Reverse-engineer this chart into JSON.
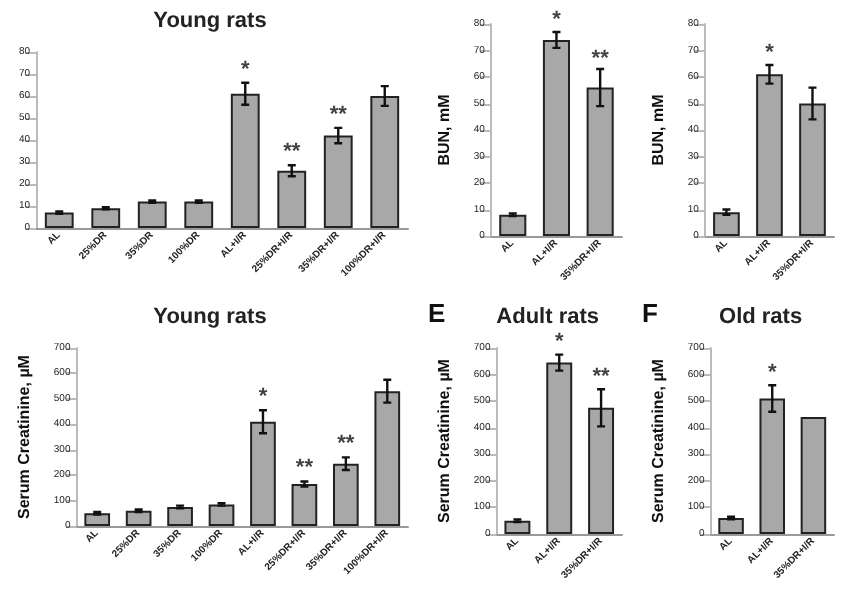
{
  "chart_data": [
    {
      "type": "bar",
      "title": "Young rats",
      "categories": [
        "AL",
        "25%DR",
        "35%DR",
        "100%DR",
        "AL+I/R",
        "25%DR+I/R",
        "35%DR+I/R",
        "100%DR+I/R"
      ],
      "series": [
        {
          "color": "#a8a8a8",
          "values": [
            7,
            9,
            12,
            12,
            61,
            26,
            42,
            60
          ],
          "errors": [
            0.5,
            0.5,
            0.5,
            0.5,
            5,
            2.5,
            3.5,
            4.5
          ]
        }
      ],
      "ylim": [
        0,
        80
      ],
      "yticks": [
        0,
        10,
        20,
        30,
        40,
        50,
        60,
        70,
        80
      ],
      "annotations": [
        {
          "text": "*",
          "x": "AL+I/R",
          "y": 61
        },
        {
          "text": "**",
          "x": "25%DR+I/R",
          "y": 26
        },
        {
          "text": "**",
          "x": "35%DR+I/R",
          "y": 42
        }
      ],
      "grid": false
    },
    {
      "type": "bar",
      "ylabel": "BUN, mM",
      "categories": [
        "AL",
        "AL+I/R",
        "35%DR+I/R"
      ],
      "series": [
        {
          "color": "#a8a8a8",
          "values": [
            8,
            74,
            56
          ],
          "errors": [
            0.5,
            3,
            7
          ]
        }
      ],
      "ylim": [
        0,
        80
      ],
      "yticks": [
        0,
        10,
        20,
        30,
        40,
        50,
        60,
        70,
        80
      ],
      "annotations": [
        {
          "text": "*",
          "x": "AL+I/R",
          "y": 74
        },
        {
          "text": "**",
          "x": "35%DR+I/R",
          "y": 56
        }
      ],
      "grid": false
    },
    {
      "type": "bar",
      "ylabel": "BUN, mM",
      "categories": [
        "AL",
        "AL+I/R",
        "35%DR+I/R"
      ],
      "series": [
        {
          "color": "#a8a8a8",
          "values": [
            9,
            61,
            50
          ],
          "errors": [
            1,
            3.5,
            6
          ]
        }
      ],
      "ylim": [
        0,
        80
      ],
      "yticks": [
        0,
        10,
        20,
        30,
        40,
        50,
        60,
        70,
        80
      ],
      "annotations": [
        {
          "text": "*",
          "x": "AL+I/R",
          "y": 61
        }
      ],
      "grid": false
    },
    {
      "type": "bar",
      "title": "Young rats",
      "ylabel": "Serum Creatinine, µM",
      "categories": [
        "AL",
        "25%DR",
        "35%DR",
        "100%DR",
        "AL+I/R",
        "25%DR+I/R",
        "35%DR+I/R",
        "100%DR+I/R"
      ],
      "series": [
        {
          "color": "#a8a8a8",
          "values": [
            50,
            60,
            75,
            85,
            410,
            165,
            245,
            530
          ],
          "errors": [
            5,
            5,
            5,
            5,
            45,
            10,
            25,
            45
          ]
        }
      ],
      "ylim": [
        0,
        700
      ],
      "yticks": [
        0,
        100,
        200,
        300,
        400,
        500,
        600,
        700
      ],
      "annotations": [
        {
          "text": "*",
          "x": "AL+I/R",
          "y": 410
        },
        {
          "text": "**",
          "x": "25%DR+I/R",
          "y": 165
        },
        {
          "text": "**",
          "x": "35%DR+I/R",
          "y": 245
        }
      ],
      "grid": false
    },
    {
      "type": "bar",
      "title": "Adult rats",
      "ylabel": "Serum Creatinine, µM",
      "categories": [
        "AL",
        "AL+I/R",
        "35%DR+I/R"
      ],
      "series": [
        {
          "color": "#a8a8a8",
          "values": [
            50,
            645,
            475
          ],
          "errors": [
            5,
            30,
            70
          ]
        }
      ],
      "ylim": [
        0,
        700
      ],
      "yticks": [
        0,
        100,
        200,
        300,
        400,
        500,
        600,
        700
      ],
      "annotations": [
        "E",
        {
          "text": "*",
          "x": "AL+I/R",
          "y": 645
        },
        {
          "text": "**",
          "x": "35%DR+I/R",
          "y": 475
        }
      ],
      "grid": false
    },
    {
      "type": "bar",
      "title": "Old rats",
      "ylabel": "Serum Creatinine, µM",
      "categories": [
        "AL",
        "AL+I/R",
        "35%DR+I/R"
      ],
      "series": [
        {
          "color": "#a8a8a8",
          "values": [
            60,
            510,
            440
          ],
          "errors": [
            5,
            50,
            null
          ]
        }
      ],
      "ylim": [
        0,
        700
      ],
      "yticks": [
        0,
        100,
        200,
        300,
        400,
        500,
        600,
        700
      ],
      "annotations": [
        "F",
        {
          "text": "*",
          "x": "AL+I/R",
          "y": 510
        }
      ],
      "grid": false
    }
  ]
}
